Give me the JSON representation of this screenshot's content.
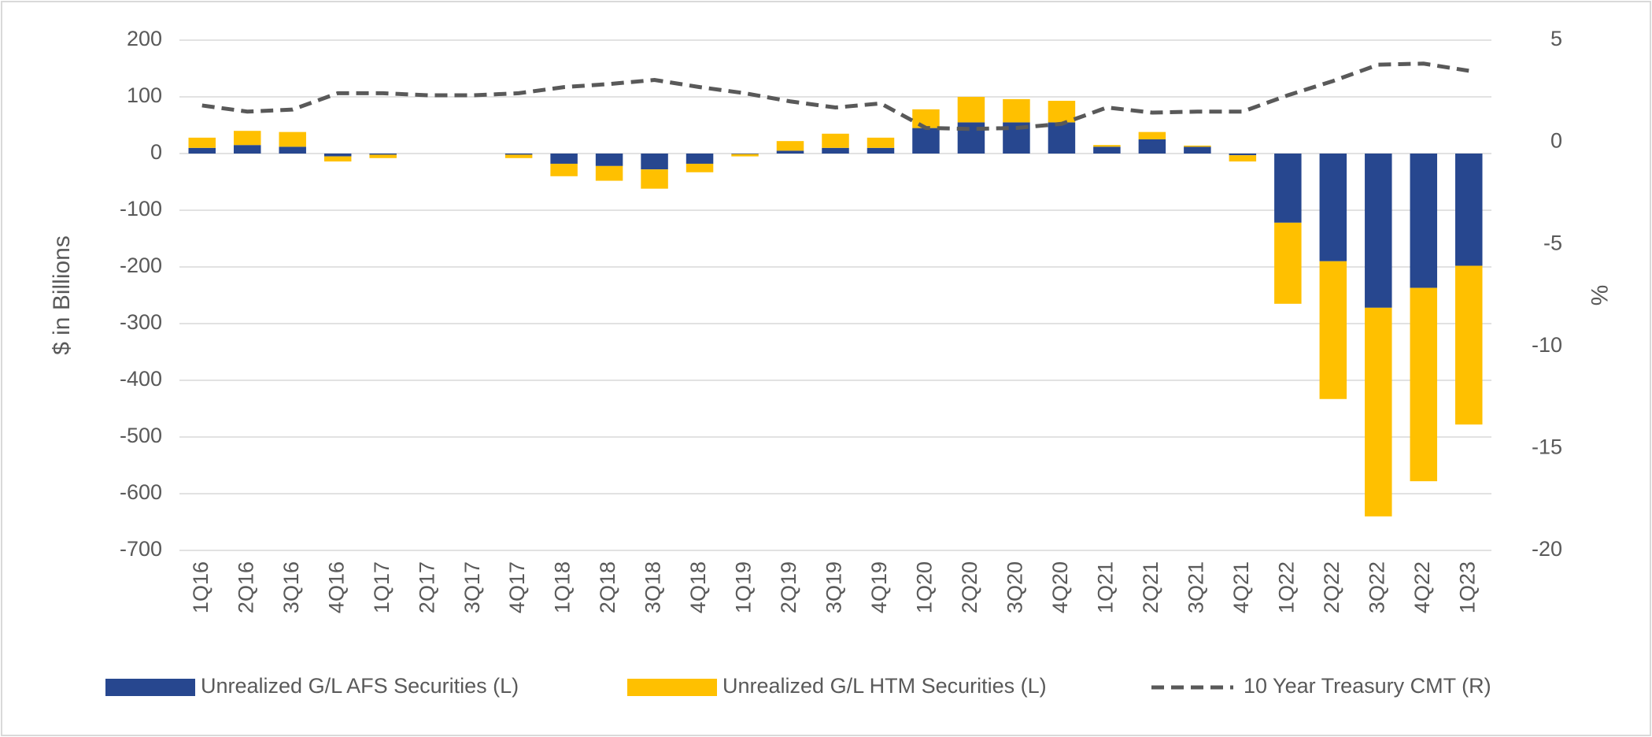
{
  "chart_data": {
    "type": "bar",
    "categories": [
      "1Q16",
      "2Q16",
      "3Q16",
      "4Q16",
      "1Q17",
      "2Q17",
      "3Q17",
      "4Q17",
      "1Q18",
      "2Q18",
      "3Q18",
      "4Q18",
      "1Q19",
      "2Q19",
      "3Q19",
      "4Q19",
      "1Q20",
      "2Q20",
      "3Q20",
      "4Q20",
      "1Q21",
      "2Q21",
      "3Q21",
      "4Q21",
      "1Q22",
      "2Q22",
      "3Q22",
      "4Q22",
      "1Q23"
    ],
    "y_label": "$ in Billions",
    "y2_label": "%",
    "stacked": true,
    "grid": true,
    "legend": "bottom",
    "ylim": [
      -700,
      200
    ],
    "yticks": [
      200,
      100,
      0,
      -100,
      -200,
      -300,
      -400,
      -500,
      -600,
      -700
    ],
    "y2lim": [
      -20,
      5
    ],
    "y2ticks": [
      5,
      0,
      -5,
      -10,
      -15,
      -20
    ],
    "series": [
      {
        "name": "Unrealized G/L AFS Securities (L)",
        "type": "bar",
        "color": "#27478f",
        "values": [
          10,
          15,
          12,
          -5,
          -2,
          0,
          0,
          -2,
          -18,
          -22,
          -28,
          -18,
          -1,
          5,
          10,
          10,
          45,
          55,
          55,
          55,
          12,
          25,
          12,
          -3,
          -122,
          -190,
          -272,
          -237,
          -198
        ]
      },
      {
        "name": "Unrealized G/L HTM Securities (L)",
        "type": "bar",
        "color": "#ffc000",
        "values": [
          18,
          25,
          26,
          -9,
          -6,
          0,
          0,
          -6,
          -22,
          -26,
          -34,
          -15,
          -4,
          17,
          25,
          18,
          33,
          45,
          41,
          38,
          3,
          13,
          2,
          -11,
          -143,
          -243,
          -368,
          -341,
          -280
        ]
      },
      {
        "name": "10 Year Treasury CMT (R)",
        "type": "line",
        "axis": "y2",
        "color": "#595959",
        "dashed": true,
        "values": [
          1.8,
          1.5,
          1.6,
          2.4,
          2.4,
          2.3,
          2.3,
          2.4,
          2.7,
          2.85,
          3.05,
          2.7,
          2.4,
          2.0,
          1.7,
          1.9,
          0.7,
          0.65,
          0.7,
          0.9,
          1.7,
          1.45,
          1.5,
          1.5,
          2.3,
          3.0,
          3.8,
          3.85,
          3.5
        ]
      }
    ]
  }
}
